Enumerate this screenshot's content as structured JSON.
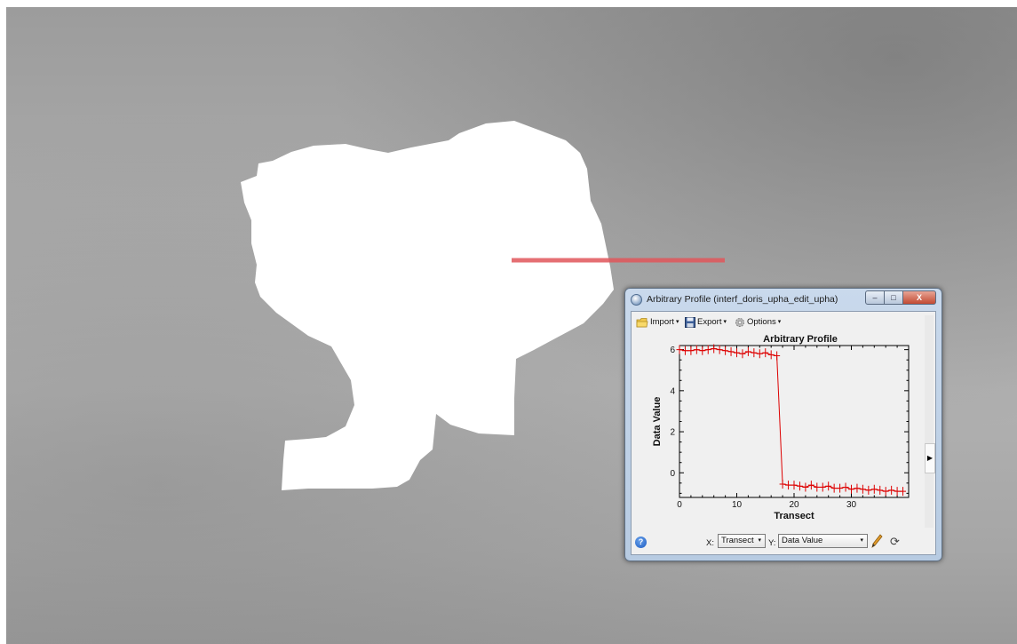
{
  "window": {
    "title": "Arbitrary Profile  (interf_doris_upha_edit_upha)",
    "min_glyph": "–",
    "max_glyph": "□",
    "close_glyph": "X"
  },
  "toolbar": {
    "import_label": "Import",
    "export_label": "Export",
    "options_label": "Options",
    "caret": "▾"
  },
  "bottom": {
    "x_prefix": "X:",
    "x_selected": "Transect",
    "y_prefix": "Y:",
    "y_selected": "Data Value",
    "help_glyph": "?",
    "refresh_glyph": "⟳"
  },
  "scroll_arrow": "▶",
  "colors": {
    "profile_line": "#e0565b",
    "series": "#dd0000",
    "blob": "#ffffff"
  },
  "icons": [
    "folder-icon",
    "save-icon",
    "gear-icon",
    "help-icon",
    "pencil-icon",
    "refresh-icon",
    "window-icon"
  ],
  "chart_data": {
    "type": "line",
    "title": "Arbitrary Profile",
    "xlabel": "Transect",
    "ylabel": "Data Value",
    "xlim": [
      0,
      40
    ],
    "ylim": [
      -1.2,
      6.2
    ],
    "xticks": [
      0,
      10,
      20,
      30
    ],
    "yticks": [
      0,
      2,
      4,
      6
    ],
    "marker": "+",
    "series": [
      {
        "x": [
          0,
          1,
          2,
          3,
          4,
          5,
          6,
          7,
          8,
          9,
          10,
          11,
          12,
          13,
          14,
          15,
          16,
          17,
          18,
          19,
          20,
          21,
          22,
          23,
          24,
          25,
          26,
          27,
          28,
          29,
          30,
          31,
          32,
          33,
          34,
          35,
          36,
          37,
          38,
          39
        ],
        "y": [
          6.0,
          5.95,
          5.95,
          6.0,
          5.95,
          6.0,
          6.05,
          6.0,
          5.95,
          5.9,
          5.85,
          5.8,
          5.9,
          5.85,
          5.8,
          5.85,
          5.75,
          5.7,
          -0.55,
          -0.6,
          -0.6,
          -0.65,
          -0.7,
          -0.6,
          -0.7,
          -0.7,
          -0.65,
          -0.75,
          -0.75,
          -0.7,
          -0.8,
          -0.75,
          -0.8,
          -0.85,
          -0.8,
          -0.85,
          -0.9,
          -0.85,
          -0.9,
          -0.9
        ]
      }
    ]
  }
}
